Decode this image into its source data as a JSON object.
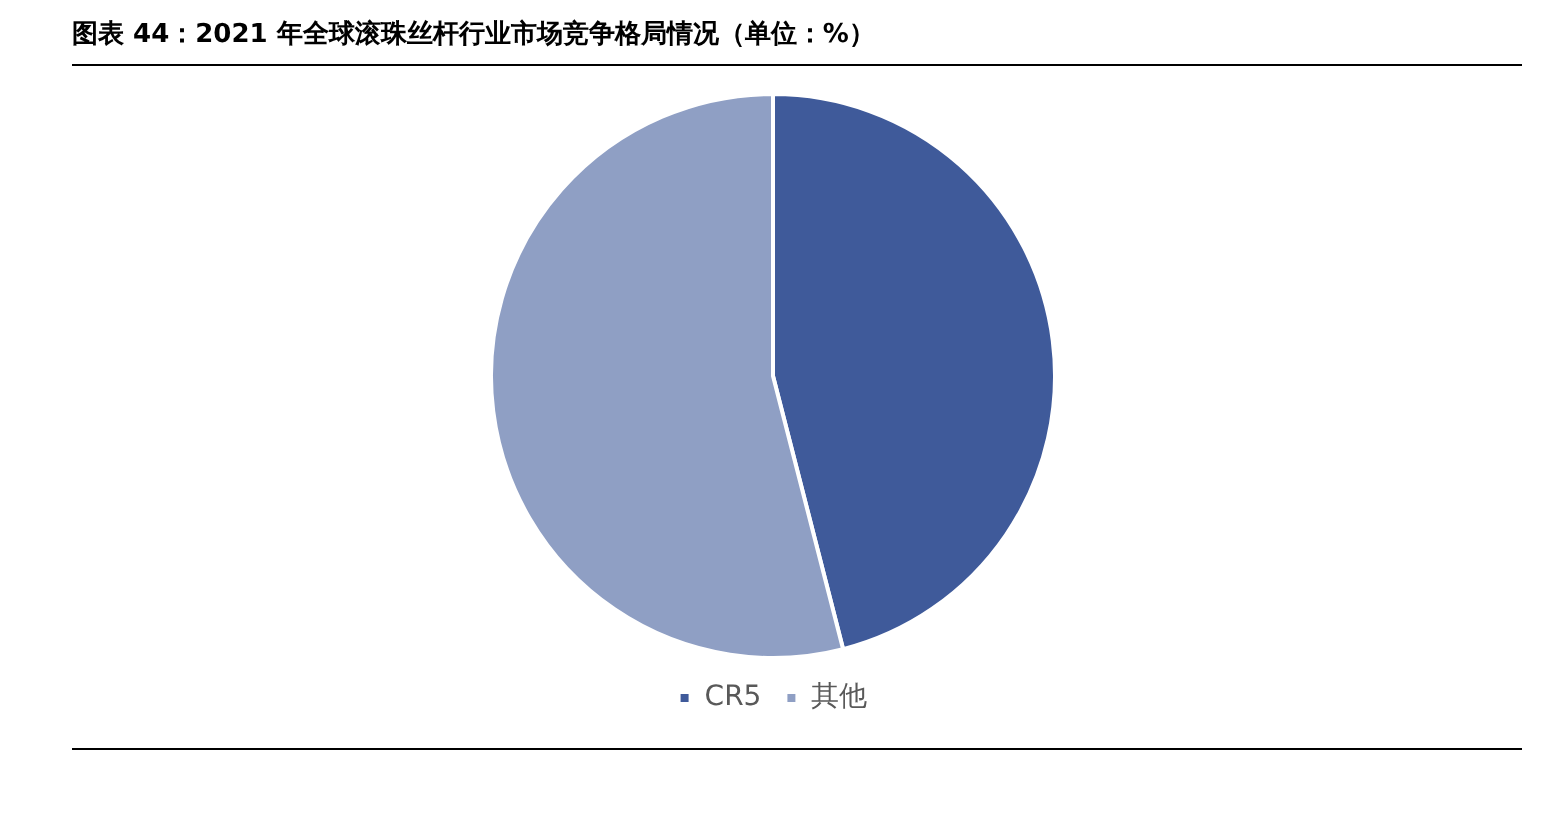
{
  "chart_data": {
    "type": "pie",
    "title": "图表 44：2021 年全球滚珠丝杆行业市场竞争格局情况（单位：%）",
    "categories": [
      "CR5",
      "其他"
    ],
    "values": [
      46,
      54
    ],
    "colors": [
      "#3f5a9a",
      "#8f9fc4"
    ],
    "legend": "bottom"
  }
}
